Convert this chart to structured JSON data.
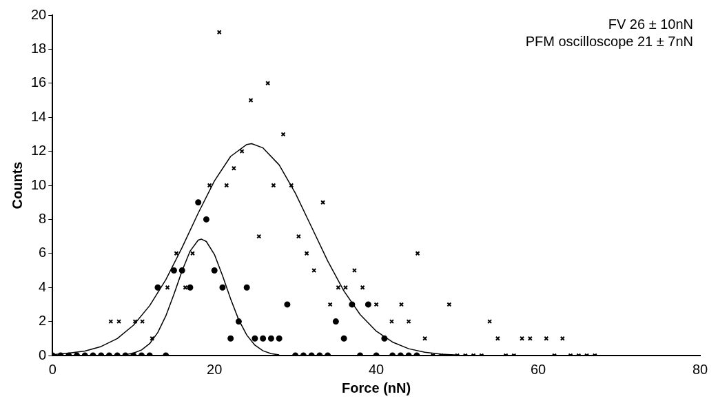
{
  "chart_data": {
    "type": "scatter",
    "xlabel": "Force (nN)",
    "ylabel": "Counts",
    "xlim": [
      0,
      80
    ],
    "xticks": [
      0,
      20,
      40,
      60,
      80
    ],
    "ylim": [
      0,
      20
    ],
    "yticks": [
      0,
      2,
      4,
      6,
      8,
      10,
      12,
      14,
      16,
      18,
      20
    ],
    "annotations": [
      "FV 26 ± 10nN",
      "PFM oscilloscope 21 ± 7nN"
    ],
    "series": [
      {
        "type": "scatter",
        "marker": "cross",
        "color": "#000000",
        "x": [
          7.2,
          8.2,
          10.2,
          11.1,
          12.3,
          14.2,
          15.3,
          16.4,
          17.3,
          19.4,
          20.6,
          21.5,
          22.4,
          23.4,
          24.5,
          25.5,
          26.6,
          27.3,
          28.5,
          29.5,
          30.4,
          31.4,
          32.3,
          33.4,
          34.3,
          35.3,
          36.2,
          37.3,
          38.3,
          40,
          41.9,
          43.1,
          44,
          45.1,
          46,
          47,
          48,
          49,
          50,
          51,
          52,
          53,
          54,
          55,
          56,
          57,
          58,
          59,
          61,
          62,
          63,
          64,
          65,
          66,
          67
        ],
        "values": [
          2,
          2,
          2,
          2,
          1,
          4,
          6,
          4,
          6,
          10,
          19,
          10,
          11,
          12,
          15,
          7,
          16,
          10,
          13,
          10,
          7,
          6,
          5,
          9,
          3,
          4,
          4,
          5,
          4,
          3,
          2,
          3,
          2,
          6,
          1,
          0,
          0,
          3,
          0,
          0,
          0,
          0,
          2,
          1,
          0,
          0,
          1,
          1,
          1,
          0,
          1,
          0,
          0,
          0,
          0
        ]
      },
      {
        "type": "scatter",
        "marker": "circle",
        "color": "#000000",
        "x": [
          0,
          1,
          2,
          3,
          4,
          5,
          6,
          7,
          8,
          9,
          10,
          11,
          12,
          13,
          14,
          15,
          16,
          17,
          18,
          19,
          20,
          21,
          22,
          23,
          24,
          25,
          26,
          27,
          28,
          29,
          30,
          31,
          32,
          33,
          34,
          35,
          36,
          37,
          38,
          39,
          40,
          41,
          42,
          43,
          44,
          45
        ],
        "values": [
          0,
          0,
          0,
          0,
          0,
          0,
          0,
          0,
          0,
          0,
          0,
          0,
          0,
          4,
          0,
          5,
          5,
          4,
          9,
          8,
          5,
          4,
          1,
          2,
          4,
          1,
          1,
          1,
          1,
          3,
          0,
          0,
          0,
          0,
          0,
          2,
          1,
          3,
          0,
          3,
          0,
          1,
          0,
          0,
          0,
          0
        ]
      },
      {
        "type": "line",
        "marker": "none",
        "color": "#000000",
        "x": [
          0,
          2,
          4,
          6,
          8,
          10,
          12,
          14,
          16,
          18,
          20,
          22,
          24,
          24.6,
          26,
          28,
          30,
          32,
          34,
          36,
          38,
          40,
          42,
          44,
          46,
          48,
          50
        ],
        "values": [
          0.05,
          0.14,
          0.26,
          0.53,
          1.0,
          1.78,
          2.93,
          4.46,
          6.34,
          8.37,
          10.26,
          11.7,
          12.4,
          12.45,
          12.2,
          11.2,
          9.54,
          7.55,
          5.55,
          3.79,
          2.41,
          1.43,
          0.79,
          0.4,
          0.19,
          0.08,
          0.03
        ]
      },
      {
        "type": "line",
        "marker": "none",
        "color": "#000000",
        "x": [
          9,
          10,
          11,
          12,
          13,
          14,
          15,
          16,
          17,
          18,
          18.4,
          19,
          20,
          21,
          22,
          23,
          24,
          25,
          26,
          27,
          28
        ],
        "values": [
          0.05,
          0.14,
          0.33,
          0.7,
          1.35,
          2.33,
          3.6,
          4.97,
          6.14,
          6.78,
          6.84,
          6.7,
          5.94,
          4.7,
          3.33,
          2.1,
          1.2,
          0.61,
          0.28,
          0.11,
          0.04
        ]
      }
    ]
  }
}
